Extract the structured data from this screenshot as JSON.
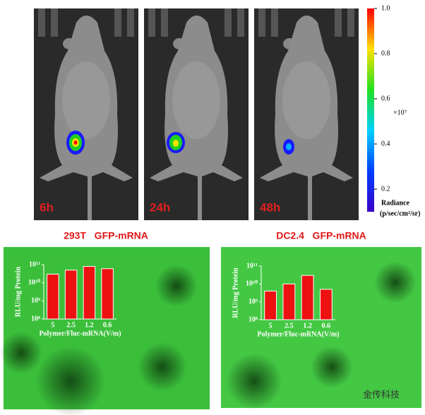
{
  "panels": [
    {
      "label": "6h"
    },
    {
      "label": "24h"
    },
    {
      "label": "48h"
    }
  ],
  "colorbar": {
    "title": "Radiance",
    "unit": "(p/sec/cm²/sr)",
    "multiplier": "×10⁷",
    "lim": [
      0.1,
      1.0
    ],
    "ticks": [
      {
        "value": 1.0,
        "label": "1.0"
      },
      0.8,
      0.6,
      0.4,
      0.2
    ]
  },
  "watermark": "金传科技",
  "chart_data": [
    {
      "type": "bar",
      "title": "293T   GFP-mRNA",
      "y_label": "RLU/mg Protein",
      "x_label": "Polymer/Fluc-mRNA(V/m)",
      "categories": [
        "5",
        "2.5",
        "1.2",
        "0.6"
      ],
      "values": [
        30000000000,
        50000000000,
        80000000000,
        60000000000
      ],
      "color": "#ee1111",
      "log_scale": true,
      "ylim": [
        100000000,
        100000000000
      ],
      "yticks": [
        {
          "value": 100000000,
          "label": "10⁸"
        },
        {
          "value": 1000000000,
          "label": "10⁹"
        },
        {
          "value": 10000000000,
          "label": "10¹⁰"
        },
        {
          "value": 100000000000,
          "label": "10¹¹"
        }
      ]
    },
    {
      "type": "bar",
      "title": "DC2.4   GFP-mRNA",
      "y_label": "RLU/mg Protein",
      "x_label": "Polymer/Fluc-mRNA(V/m)",
      "categories": [
        "5",
        "2.5",
        "1.2",
        "0.6"
      ],
      "values": [
        4000000000,
        10000000000,
        30000000000,
        5000000000
      ],
      "color": "#ee1111",
      "log_scale": true,
      "ylim": [
        100000000,
        100000000000
      ],
      "yticks": [
        {
          "value": 100000000,
          "label": "10⁸"
        },
        {
          "value": 1000000000,
          "label": "10⁹"
        },
        {
          "value": 10000000000,
          "label": "10¹⁰"
        },
        {
          "value": 100000000000,
          "label": "10¹¹"
        }
      ]
    }
  ]
}
